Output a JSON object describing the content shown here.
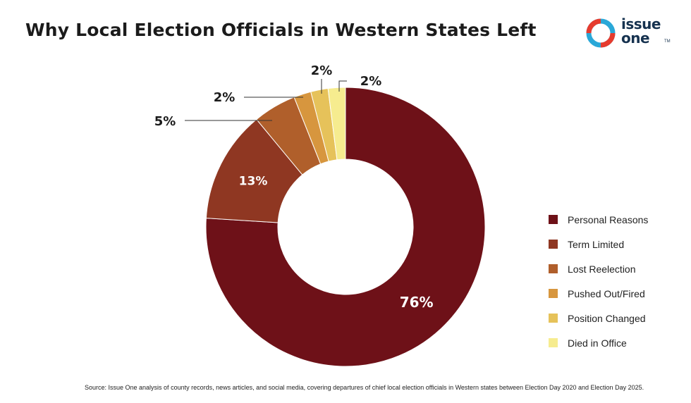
{
  "title": "Why Local Election Officials in Western States Left",
  "logo": {
    "line1": "issue",
    "line2": "one",
    "tm": "TM",
    "ring_colors": [
      "#e63b2e",
      "#2aa8d8"
    ]
  },
  "chart_data": {
    "type": "pie",
    "style": "donut",
    "title": "Why Local Election Officials in Western States Left",
    "categories": [
      "Personal Reasons",
      "Term Limited",
      "Lost Reelection",
      "Pushed Out/Fired",
      "Position Changed",
      "Died in Office"
    ],
    "values": [
      76,
      13,
      5,
      2,
      2,
      2
    ],
    "labels": [
      "76%",
      "13%",
      "5%",
      "2%",
      "2%",
      "2%"
    ],
    "colors": [
      "#6e1118",
      "#8f3722",
      "#b05f2b",
      "#d7963e",
      "#e6c25a",
      "#f6ec8f"
    ],
    "legend_position": "right"
  },
  "source": "Source: Issue One analysis of county records, news articles, and social media, covering departures of chief local election officials in Western states between Election Day 2020 and Election Day 2025."
}
